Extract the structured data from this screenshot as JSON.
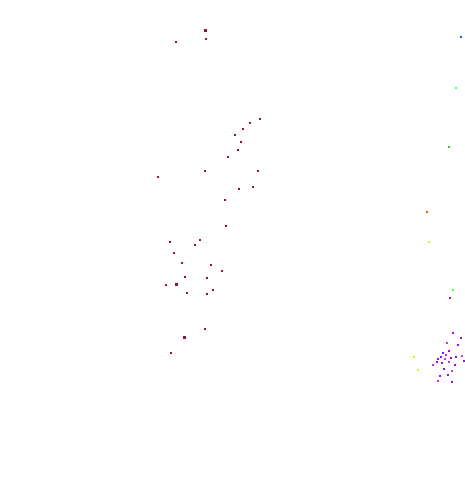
{
  "palette": {
    "background": "#ffffff",
    "maroon": "#8a0f4a",
    "magenta": "#b000ff",
    "pink": "#cc33cc",
    "purple": "#7a1bd6",
    "green": "#22cc22",
    "lime": "#44ff44",
    "yellow": "#eeee00",
    "orange": "#ff5500",
    "blue": "#1e64ff",
    "red": "#cc1133"
  },
  "marks": []
}
